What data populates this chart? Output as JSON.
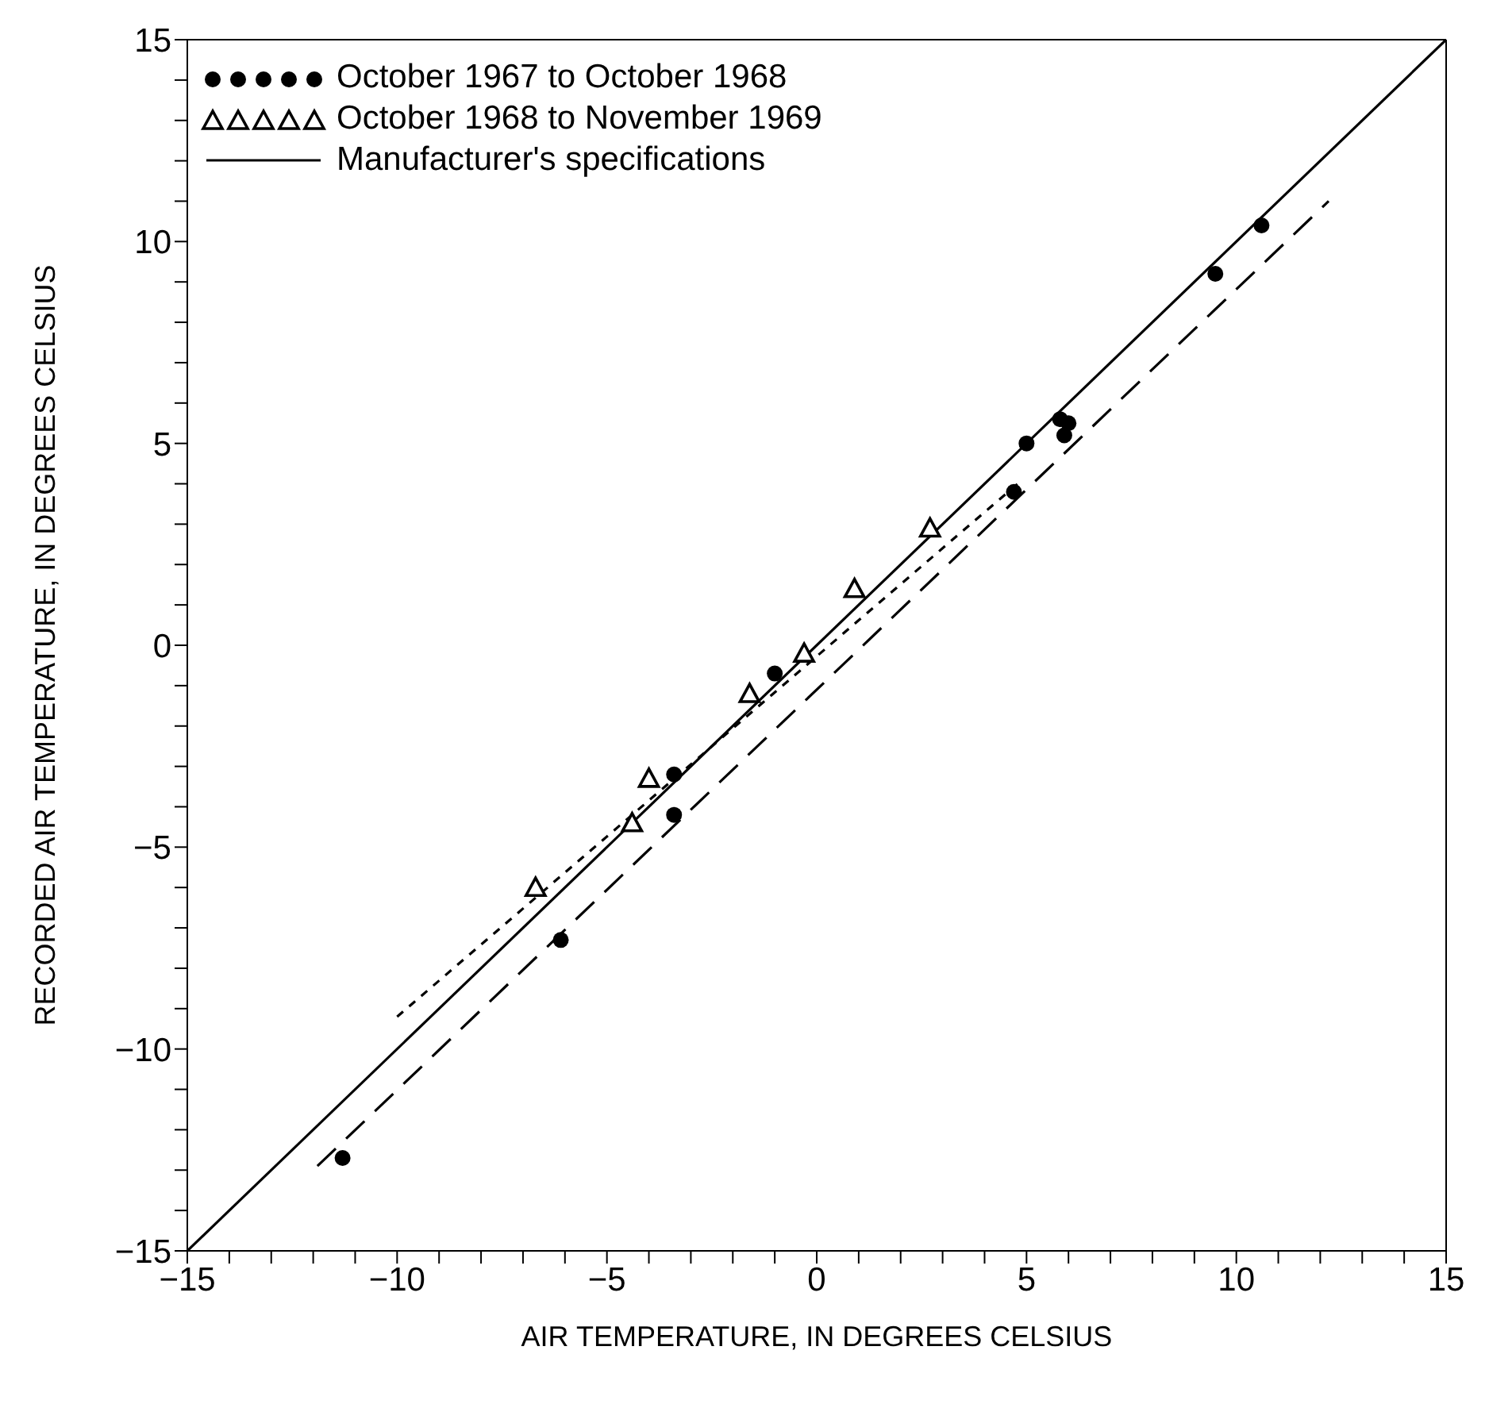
{
  "chart_data": {
    "type": "scatter",
    "xlabel": "AIR TEMPERATURE, IN DEGREES CELSIUS",
    "ylabel": "RECORDED AIR TEMPERATURE, IN DEGREES CELSIUS",
    "xlim": [
      -15,
      15
    ],
    "ylim": [
      -15,
      15
    ],
    "xticks": [
      -15,
      {
        "value": -14,
        "label": null
      },
      {
        "value": -13,
        "label": null
      },
      {
        "value": -12,
        "label": null
      },
      {
        "value": -11,
        "label": null
      },
      -10,
      {
        "value": -9,
        "label": null
      },
      {
        "value": -8,
        "label": null
      },
      {
        "value": -7,
        "label": null
      },
      {
        "value": -6,
        "label": null
      },
      -5,
      {
        "value": -4,
        "label": null
      },
      {
        "value": -3,
        "label": null
      },
      {
        "value": -2,
        "label": null
      },
      {
        "value": -1,
        "label": null
      },
      0,
      {
        "value": 1,
        "label": null
      },
      {
        "value": 2,
        "label": null
      },
      {
        "value": 3,
        "label": null
      },
      {
        "value": 4,
        "label": null
      },
      5,
      {
        "value": 6,
        "label": null
      },
      {
        "value": 7,
        "label": null
      },
      {
        "value": 8,
        "label": null
      },
      {
        "value": 9,
        "label": null
      },
      10,
      {
        "value": 11,
        "label": null
      },
      {
        "value": 12,
        "label": null
      },
      {
        "value": 13,
        "label": null
      },
      {
        "value": 14,
        "label": null
      },
      15
    ],
    "yticks": [
      -15,
      {
        "value": -14,
        "label": null
      },
      {
        "value": -13,
        "label": null
      },
      {
        "value": -12,
        "label": null
      },
      {
        "value": -11,
        "label": null
      },
      -10,
      {
        "value": -9,
        "label": null
      },
      {
        "value": -8,
        "label": null
      },
      {
        "value": -7,
        "label": null
      },
      {
        "value": -6,
        "label": null
      },
      -5,
      {
        "value": -4,
        "label": null
      },
      {
        "value": -3,
        "label": null
      },
      {
        "value": -2,
        "label": null
      },
      {
        "value": -1,
        "label": null
      },
      0,
      {
        "value": 1,
        "label": null
      },
      {
        "value": 2,
        "label": null
      },
      {
        "value": 3,
        "label": null
      },
      {
        "value": 4,
        "label": null
      },
      5,
      {
        "value": 6,
        "label": null
      },
      {
        "value": 7,
        "label": null
      },
      {
        "value": 8,
        "label": null
      },
      {
        "value": 9,
        "label": null
      },
      10,
      {
        "value": 11,
        "label": null
      },
      {
        "value": 12,
        "label": null
      },
      {
        "value": 13,
        "label": null
      },
      {
        "value": 14,
        "label": null
      },
      15
    ],
    "grid": false,
    "legend": "top left",
    "series": [
      {
        "name": "October 1967 to October 1968",
        "marker": "circle",
        "color": "#000000",
        "x": [
          -11.3,
          -6.1,
          -3.4,
          -3.4,
          -1.0,
          4.7,
          5.0,
          5.8,
          5.9,
          6.0,
          9.5,
          10.6
        ],
        "values": [
          -12.7,
          -7.3,
          -4.2,
          -3.2,
          -0.7,
          3.8,
          5.0,
          5.6,
          5.2,
          5.5,
          9.2,
          10.4
        ]
      },
      {
        "name": "October 1968 to November 1969",
        "marker": "triangle",
        "color": "#000000",
        "x": [
          -6.7,
          -4.4,
          -4.0,
          -1.6,
          -0.3,
          0.9,
          2.7
        ],
        "values": [
          -6.0,
          -4.4,
          -3.3,
          -1.2,
          -0.2,
          1.4,
          2.9
        ]
      },
      {
        "name": "Manufacturer's specifications",
        "type": "line",
        "line_style": "solid",
        "color": "#000000",
        "x": [
          -15,
          15
        ],
        "values": [
          -15,
          15
        ]
      },
      {
        "type": "line",
        "line_style": "dashed",
        "color": "#000000",
        "x": [
          -11.9,
          12.2
        ],
        "values": [
          -12.9,
          11.0
        ]
      },
      {
        "type": "line",
        "line_style": "dotted",
        "color": "#000000",
        "x": [
          -10.0,
          4.9
        ],
        "values": [
          -9.2,
          4.1
        ]
      }
    ]
  }
}
